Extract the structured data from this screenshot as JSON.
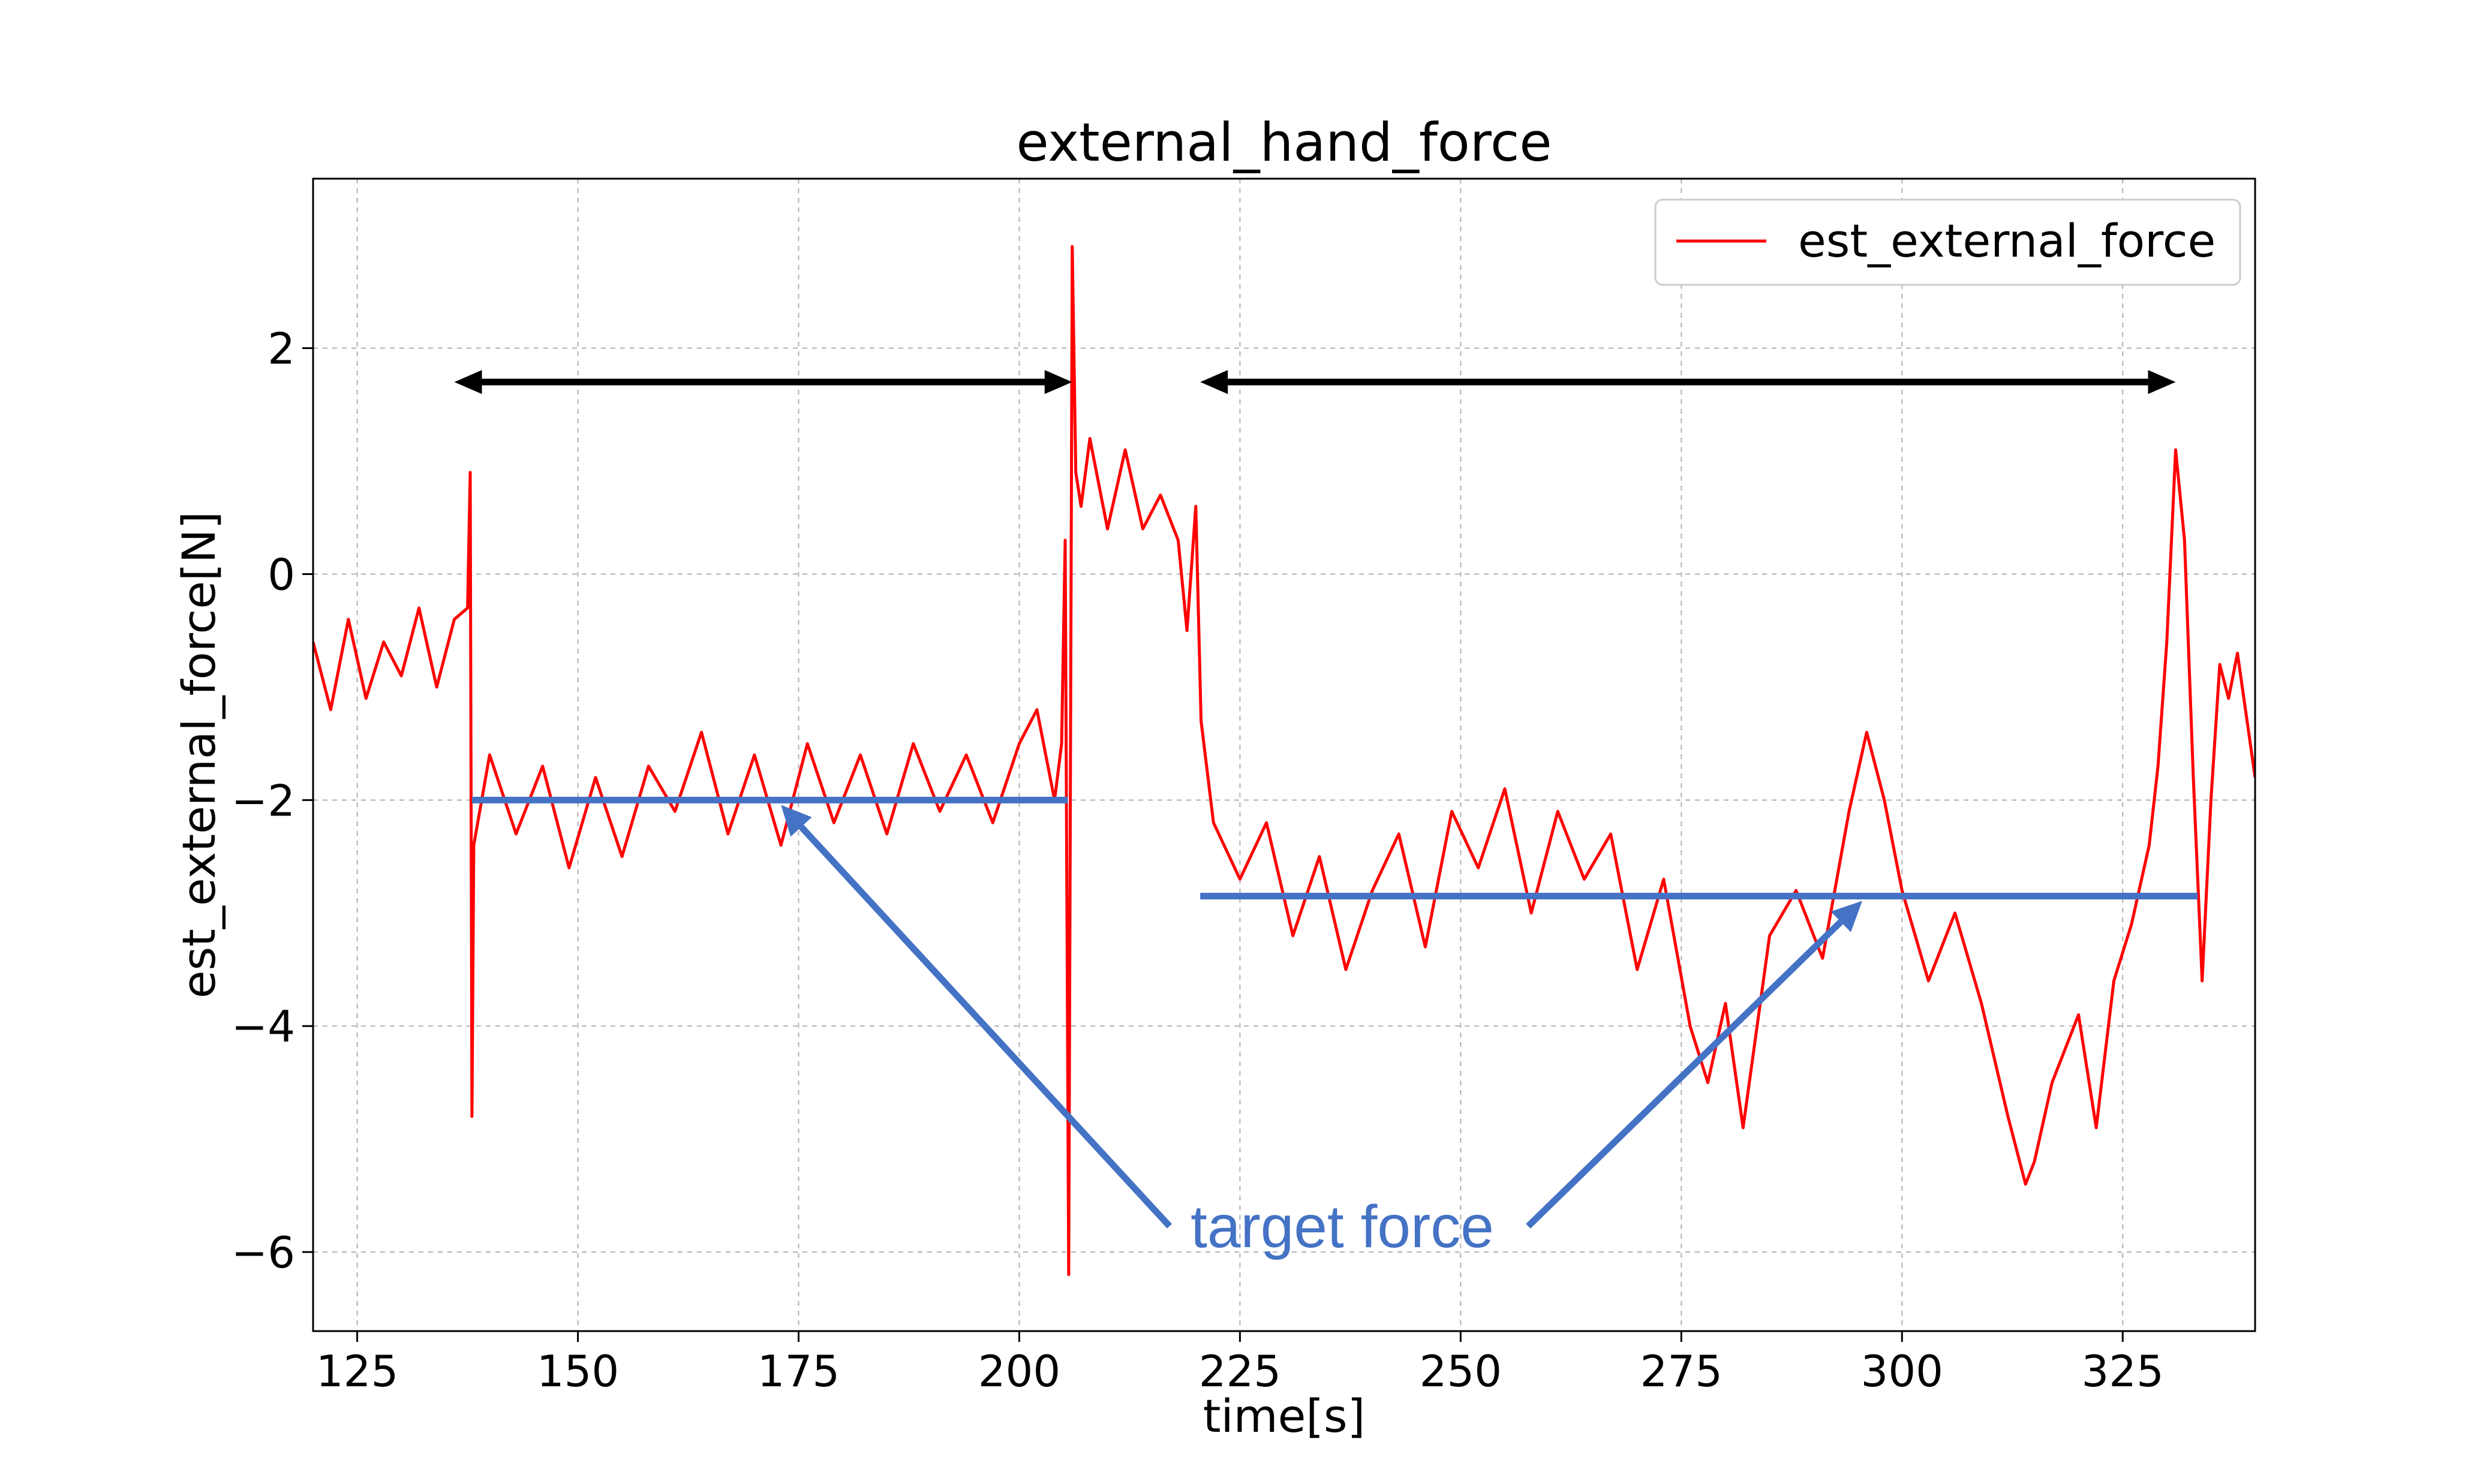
{
  "chart_data": {
    "type": "line",
    "title": "external_hand_force",
    "xlabel": "time[s]",
    "ylabel": "est_external_force[N]",
    "xlim": [
      120,
      340
    ],
    "ylim": [
      -6.7,
      3.5
    ],
    "xticks": [
      125,
      150,
      175,
      200,
      225,
      250,
      275,
      300,
      325
    ],
    "yticks": [
      2,
      0,
      -2,
      -4,
      -6
    ],
    "ytick_labels": [
      "2",
      "0",
      "−2",
      "−4",
      "−6"
    ],
    "grid": true,
    "legend_position": "top-right",
    "series": [
      {
        "name": "est_external_force",
        "color": "#ff0000",
        "x": [
          120,
          122,
          124,
          126,
          128,
          130,
          132,
          134,
          136,
          137.5,
          137.8,
          138,
          138.2,
          140,
          143,
          146,
          149,
          152,
          155,
          158,
          161,
          164,
          167,
          170,
          173,
          176,
          179,
          182,
          185,
          188,
          191,
          194,
          197,
          200,
          202,
          204,
          204.8,
          205.2,
          205.6,
          206,
          206.4,
          207,
          208,
          210,
          212,
          214,
          216,
          218,
          219,
          220,
          220.6,
          222,
          225,
          228,
          231,
          234,
          237,
          240,
          243,
          246,
          249,
          252,
          255,
          258,
          261,
          264,
          267,
          270,
          273,
          276,
          278,
          280,
          282,
          285,
          288,
          291,
          294,
          296,
          298,
          300,
          303,
          306,
          309,
          312,
          314,
          315,
          317,
          320,
          322,
          324,
          326,
          328,
          329,
          330,
          331,
          332,
          333,
          334,
          335,
          336,
          337,
          338,
          340
        ],
        "y": [
          -0.6,
          -1.2,
          -0.4,
          -1.1,
          -0.6,
          -0.9,
          -0.3,
          -1.0,
          -0.4,
          -0.3,
          0.9,
          -4.8,
          -2.4,
          -1.6,
          -2.3,
          -1.7,
          -2.6,
          -1.8,
          -2.5,
          -1.7,
          -2.1,
          -1.4,
          -2.3,
          -1.6,
          -2.4,
          -1.5,
          -2.2,
          -1.6,
          -2.3,
          -1.5,
          -2.1,
          -1.6,
          -2.2,
          -1.5,
          -1.2,
          -2.0,
          -1.5,
          0.3,
          -6.2,
          2.9,
          0.9,
          0.6,
          1.2,
          0.4,
          1.1,
          0.4,
          0.7,
          0.3,
          -0.5,
          0.6,
          -1.3,
          -2.2,
          -2.7,
          -2.2,
          -3.2,
          -2.5,
          -3.5,
          -2.8,
          -2.3,
          -3.3,
          -2.1,
          -2.6,
          -1.9,
          -3.0,
          -2.1,
          -2.7,
          -2.3,
          -3.5,
          -2.7,
          -4.0,
          -4.5,
          -3.8,
          -4.9,
          -3.2,
          -2.8,
          -3.4,
          -2.1,
          -1.4,
          -2.0,
          -2.8,
          -3.6,
          -3.0,
          -3.8,
          -4.8,
          -5.4,
          -5.2,
          -4.5,
          -3.9,
          -4.9,
          -3.6,
          -3.1,
          -2.4,
          -1.7,
          -0.6,
          1.1,
          0.3,
          -1.8,
          -3.6,
          -2.0,
          -0.8,
          -1.1,
          -0.7,
          -1.8
        ]
      }
    ],
    "annotations": {
      "range_arrows": [
        {
          "from": 136,
          "to": 206,
          "y": 1.7
        },
        {
          "from": 220.5,
          "to": 331,
          "y": 1.7
        }
      ],
      "target_lines": [
        {
          "from": 138,
          "to": 205.5,
          "y": -2.0
        },
        {
          "from": 220.5,
          "to": 333.5,
          "y": -2.85
        }
      ],
      "label": "target force",
      "label_color": "#4472c4",
      "arrow_tips": [
        {
          "x": 173,
          "y": -2.0
        },
        {
          "x": 295.5,
          "y": -2.85
        }
      ]
    }
  }
}
